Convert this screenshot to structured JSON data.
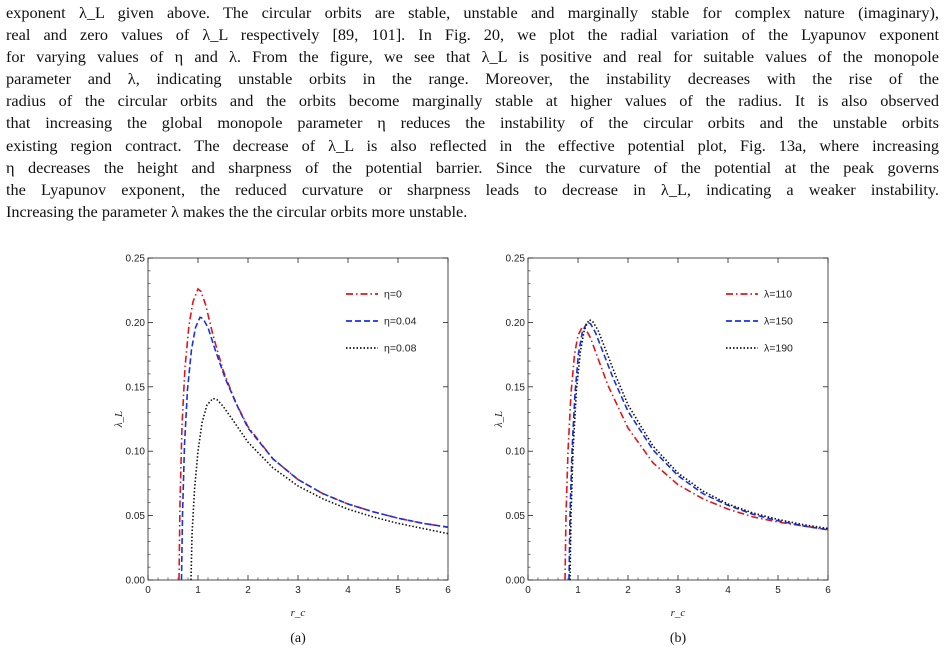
{
  "paragraph": {
    "lines": [
      "exponent λ_L given above. The circular orbits are stable, unstable and marginally stable for complex nature (imaginary),",
      "real and zero values of λ_L respectively [89, 101]. In Fig. 20, we plot the radial variation of the Lyapunov exponent",
      "for varying values of η and λ. From the figure, we see that λ_L is positive and real for suitable values of the monopole",
      "parameter and λ, indicating unstable orbits in the range. Moreover, the instability decreases with the rise of the",
      "radius of the circular orbits and the orbits become marginally stable at higher values of the radius. It is also observed",
      "that increasing the global monopole parameter η reduces the instability of the circular orbits and the unstable orbits",
      "existing region contract. The decrease of λ_L is also reflected in the effective potential plot, Fig. 13a, where increasing",
      "η decreases the height and sharpness of the potential barrier. Since the curvature of the potential at the peak governs",
      "the Lyapunov exponent, the reduced curvature or sharpness leads to decrease in λ_L, indicating a weaker instability.",
      "Increasing the parameter λ makes the the circular orbits more unstable."
    ]
  },
  "chart_data": [
    {
      "type": "line",
      "caption": "(a)",
      "xlabel": "r_c",
      "ylabel": "λ_L",
      "xlim": [
        0,
        6
      ],
      "ylim": [
        0,
        0.25
      ],
      "xticks": [
        "0",
        "1",
        "2",
        "3",
        "4",
        "5",
        "6"
      ],
      "yticks": [
        "0.00",
        "0.05",
        "0.10",
        "0.15",
        "0.20",
        "0.25"
      ],
      "legend_position": "top-right",
      "series": [
        {
          "name": "η=0",
          "color": "#e0161d",
          "dash": "dashdot",
          "x": [
            0.62,
            0.64,
            0.68,
            0.74,
            0.82,
            0.9,
            1.0,
            1.06,
            1.15,
            1.3,
            1.5,
            1.75,
            2.0,
            2.5,
            3.0,
            3.5,
            4.0,
            4.5,
            5.0,
            5.5,
            6.0
          ],
          "y": [
            0.0,
            0.06,
            0.12,
            0.165,
            0.198,
            0.216,
            0.226,
            0.224,
            0.214,
            0.19,
            0.163,
            0.138,
            0.119,
            0.094,
            0.078,
            0.067,
            0.059,
            0.053,
            0.048,
            0.044,
            0.041
          ]
        },
        {
          "name": "η=0.04",
          "color": "#1732e6",
          "dash": "dashed",
          "x": [
            0.67,
            0.69,
            0.73,
            0.79,
            0.87,
            0.95,
            1.04,
            1.1,
            1.2,
            1.35,
            1.55,
            1.8,
            2.0,
            2.5,
            3.0,
            3.5,
            4.0,
            4.5,
            5.0,
            5.5,
            6.0
          ],
          "y": [
            0.0,
            0.05,
            0.105,
            0.148,
            0.179,
            0.196,
            0.204,
            0.203,
            0.196,
            0.178,
            0.156,
            0.134,
            0.118,
            0.094,
            0.078,
            0.067,
            0.059,
            0.053,
            0.048,
            0.044,
            0.041
          ]
        },
        {
          "name": "η=0.08",
          "color": "#111111",
          "dash": "dotted",
          "x": [
            0.86,
            0.88,
            0.93,
            1.0,
            1.08,
            1.18,
            1.3,
            1.38,
            1.5,
            1.7,
            2.0,
            2.5,
            3.0,
            3.5,
            4.0,
            4.5,
            5.0,
            5.5,
            6.0
          ],
          "y": [
            0.0,
            0.035,
            0.07,
            0.1,
            0.122,
            0.136,
            0.141,
            0.14,
            0.135,
            0.124,
            0.107,
            0.087,
            0.073,
            0.063,
            0.055,
            0.049,
            0.044,
            0.04,
            0.036
          ]
        }
      ]
    },
    {
      "type": "line",
      "caption": "(b)",
      "xlabel": "r_c",
      "ylabel": "λ_L",
      "xlim": [
        0,
        6
      ],
      "ylim": [
        0,
        0.25
      ],
      "xticks": [
        "0",
        "1",
        "2",
        "3",
        "4",
        "5",
        "6"
      ],
      "yticks": [
        "0.00",
        "0.05",
        "0.10",
        "0.15",
        "0.20",
        "0.25"
      ],
      "legend_position": "top-right",
      "series": [
        {
          "name": "λ=110",
          "color": "#e0161d",
          "dash": "dashdot",
          "x": [
            0.74,
            0.76,
            0.8,
            0.86,
            0.93,
            1.0,
            1.08,
            1.15,
            1.25,
            1.4,
            1.6,
            2.0,
            2.5,
            3.0,
            3.5,
            4.0,
            4.5,
            5.0,
            5.5,
            6.0
          ],
          "y": [
            0.0,
            0.05,
            0.1,
            0.145,
            0.175,
            0.19,
            0.196,
            0.195,
            0.188,
            0.172,
            0.151,
            0.118,
            0.091,
            0.074,
            0.063,
            0.055,
            0.049,
            0.045,
            0.042,
            0.039
          ]
        },
        {
          "name": "λ=150",
          "color": "#1732e6",
          "dash": "dashed",
          "x": [
            0.82,
            0.84,
            0.88,
            0.94,
            1.01,
            1.09,
            1.18,
            1.25,
            1.35,
            1.5,
            1.7,
            2.0,
            2.5,
            3.0,
            3.5,
            4.0,
            4.5,
            5.0,
            5.5,
            6.0
          ],
          "y": [
            0.0,
            0.05,
            0.1,
            0.145,
            0.176,
            0.193,
            0.2,
            0.199,
            0.192,
            0.177,
            0.157,
            0.131,
            0.101,
            0.081,
            0.067,
            0.058,
            0.051,
            0.046,
            0.042,
            0.039
          ]
        },
        {
          "name": "λ=190",
          "color": "#111111",
          "dash": "dotted",
          "x": [
            0.84,
            0.86,
            0.9,
            0.97,
            1.05,
            1.13,
            1.22,
            1.29,
            1.4,
            1.55,
            1.75,
            2.0,
            2.5,
            3.0,
            3.5,
            4.0,
            4.5,
            5.0,
            5.5,
            6.0
          ],
          "y": [
            0.0,
            0.05,
            0.1,
            0.148,
            0.178,
            0.195,
            0.202,
            0.201,
            0.194,
            0.179,
            0.159,
            0.136,
            0.104,
            0.083,
            0.069,
            0.059,
            0.052,
            0.047,
            0.043,
            0.04
          ]
        }
      ]
    }
  ]
}
